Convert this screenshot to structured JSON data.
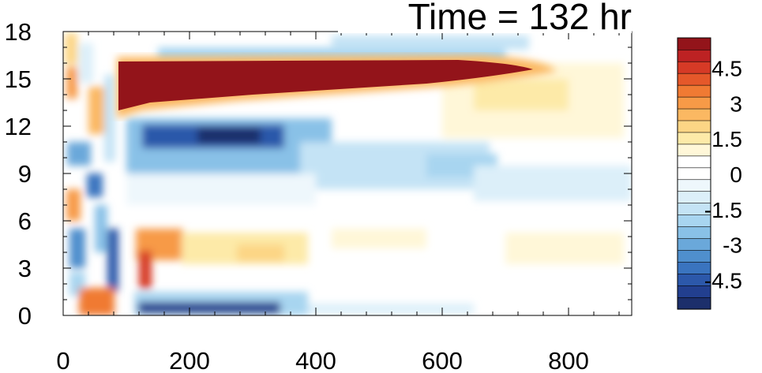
{
  "chart_data": {
    "type": "heatmap",
    "title": "Time = 132 hr",
    "xlabel": "",
    "ylabel": "",
    "xlim": [
      0,
      900
    ],
    "ylim": [
      0,
      18
    ],
    "x_ticks": [
      "0",
      "200",
      "400",
      "600",
      "800"
    ],
    "y_ticks": [
      "0",
      "3",
      "6",
      "9",
      "12",
      "15",
      "18"
    ],
    "x_tick_values": [
      0,
      200,
      400,
      600,
      800
    ],
    "y_tick_values": [
      0,
      3,
      6,
      9,
      12,
      15,
      18
    ],
    "colorbar": {
      "levels": [
        -5.5,
        -5,
        -4.5,
        -4,
        -3.5,
        -3,
        -2.5,
        -2,
        -1.5,
        -1,
        -0.5,
        0,
        0.5,
        1,
        1.5,
        2,
        2.5,
        3,
        3.5,
        4,
        4.5,
        5,
        5.5
      ],
      "labels": [
        "4.5",
        "3",
        "1.5",
        "0",
        "-1.5",
        "-3",
        "-4.5"
      ],
      "label_values": [
        4.5,
        3,
        1.5,
        0,
        -1.5,
        -3,
        -4.5
      ],
      "colors": [
        "#1c2f6b",
        "#223f8f",
        "#2c58aa",
        "#3a74bf",
        "#4f8fcd",
        "#6aa8da",
        "#89c1e7",
        "#a8d5f0",
        "#c4e3f5",
        "#dceff9",
        "#eef7fc",
        "#ffffff",
        "#ffffff",
        "#fff7d8",
        "#fdeaa8",
        "#fcd585",
        "#fbb862",
        "#f79a47",
        "#f07a33",
        "#e5582a",
        "#d63a26",
        "#bd2223",
        "#93141a"
      ]
    },
    "features": [
      {
        "x": [
          150,
          690
        ],
        "y": [
          13.3,
          16.2
        ],
        "value": 5.5
      },
      {
        "x": [
          180,
          330
        ],
        "y": [
          10.8,
          12.3
        ],
        "value": -4.5
      },
      {
        "x": [
          110,
          340
        ],
        "y": [
          0,
          0.7
        ],
        "value": -5.5
      },
      {
        "x": [
          20,
          80
        ],
        "y": [
          0,
          1.2
        ],
        "value": 4
      },
      {
        "x": [
          110,
          160
        ],
        "y": [
          2,
          5
        ],
        "value": 3
      },
      {
        "x": [
          160,
          360
        ],
        "y": [
          2.5,
          5
        ],
        "value": 1.5
      },
      {
        "x": [
          330,
          800
        ],
        "y": [
          6.5,
          12
        ],
        "value": -1.5
      },
      {
        "x": [
          560,
          800
        ],
        "y": [
          11,
          16.5
        ],
        "value": 1
      }
    ]
  }
}
